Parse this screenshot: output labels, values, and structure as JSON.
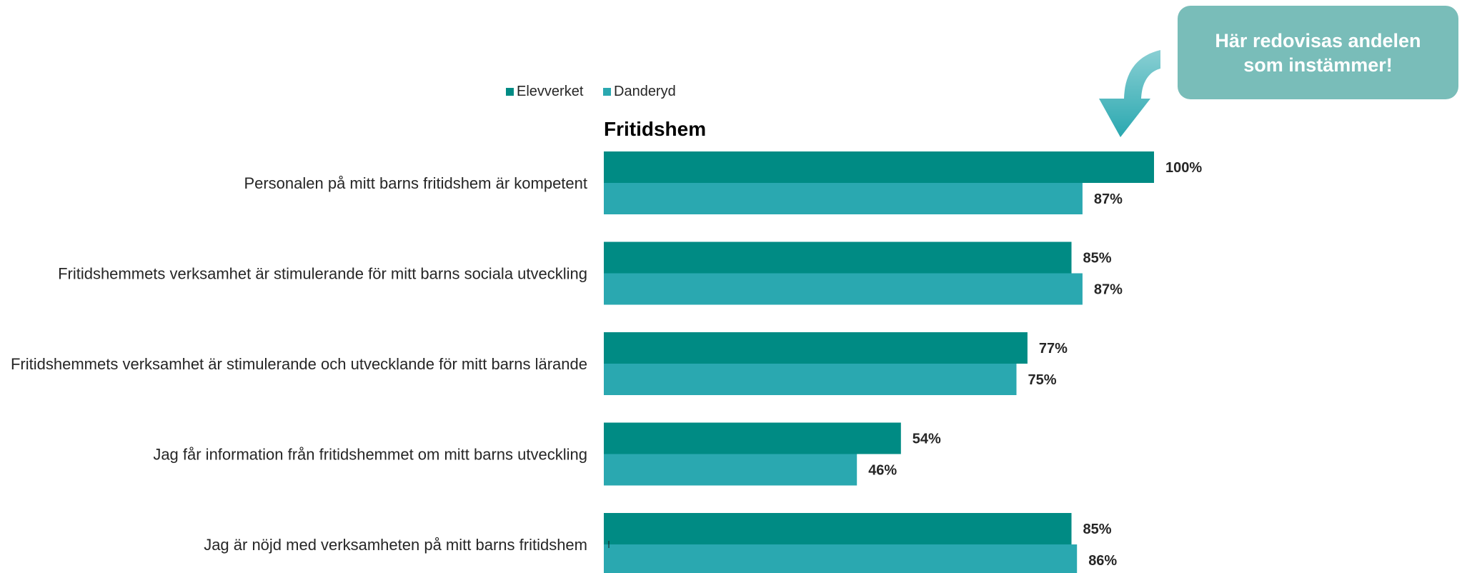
{
  "chart_data": {
    "type": "bar",
    "orientation": "horizontal",
    "title": "Fritidshem",
    "categories": [
      "Personalen på mitt barns fritidshem är kompetent",
      "Fritidshemmets verksamhet är stimulerande för mitt barns sociala utveckling",
      "Fritidshemmets verksamhet är stimulerande och utvecklande för mitt barns lärande",
      "Jag får information från fritidshemmet om mitt barns utveckling",
      "Jag är nöjd med verksamheten på mitt barns fritidshem"
    ],
    "series": [
      {
        "name": "Elevverket",
        "color": "#008b84",
        "values": [
          100,
          85,
          77,
          54,
          85
        ],
        "labels": [
          "100%",
          "85%",
          "77%",
          "54%",
          "85%"
        ]
      },
      {
        "name": "Danderyd",
        "color": "#2aa8b0",
        "values": [
          87,
          87,
          75,
          46,
          86
        ],
        "labels": [
          "87%",
          "87%",
          "75%",
          "46%",
          "86%"
        ]
      }
    ],
    "xlim": [
      0,
      100
    ],
    "grid": false,
    "legend": "top-left",
    "value_labels": true
  },
  "callout": {
    "text": "Här redovisas andelen som instämmer!",
    "background": "#79bdb9",
    "arrow_color": "#2aa8b0"
  }
}
